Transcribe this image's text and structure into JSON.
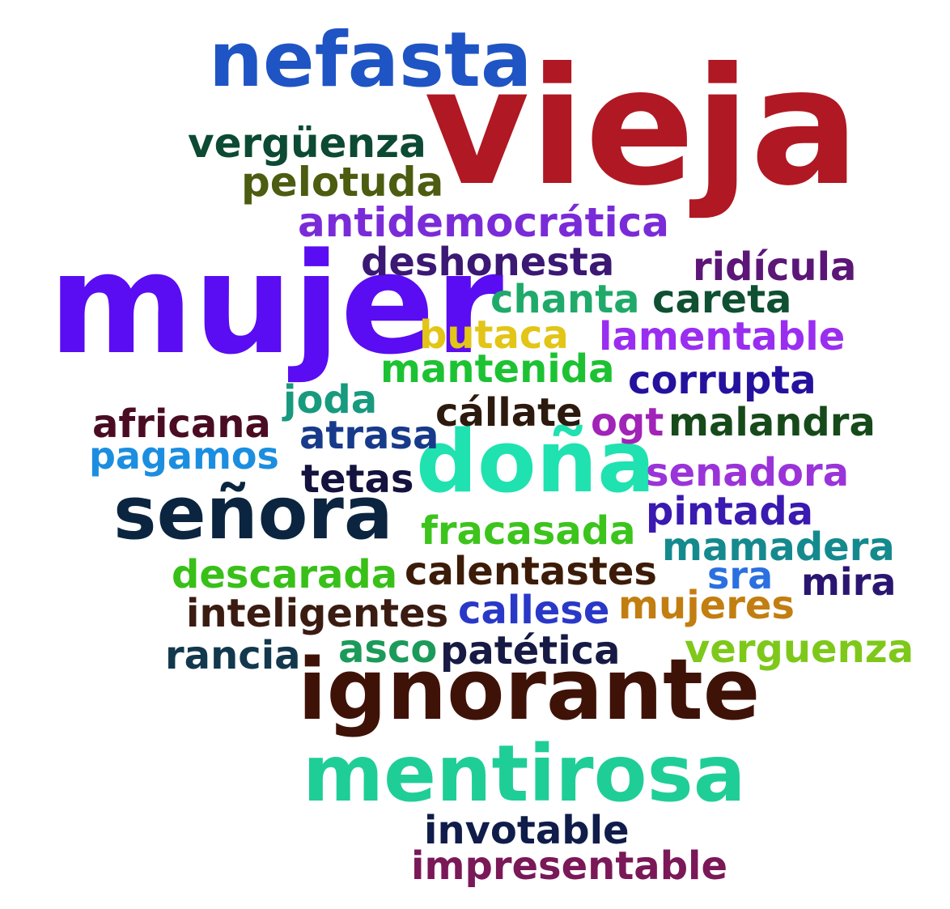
{
  "words": [
    {
      "text": "vieja",
      "color": "#b01823"
    },
    {
      "text": "mujer",
      "color": "#5a0cf2"
    },
    {
      "text": "ignorante",
      "color": "#3f1208"
    },
    {
      "text": "mentirosa",
      "color": "#1fce96"
    },
    {
      "text": "nefasta",
      "color": "#1f54c4"
    },
    {
      "text": "señora",
      "color": "#0b2540"
    },
    {
      "text": "doña",
      "color": "#1fe2b0"
    },
    {
      "text": "vergüenza",
      "color": "#0c4a33"
    },
    {
      "text": "pelotuda",
      "color": "#4c5c10"
    },
    {
      "text": "antidemocrática",
      "color": "#7a2bd8"
    },
    {
      "text": "deshonesta",
      "color": "#3b1874"
    },
    {
      "text": "ridícula",
      "color": "#5c1677"
    },
    {
      "text": "chanta",
      "color": "#1faa6a"
    },
    {
      "text": "careta",
      "color": "#0f5032"
    },
    {
      "text": "butaca",
      "color": "#e2c516"
    },
    {
      "text": "lamentable",
      "color": "#9a2ef0"
    },
    {
      "text": "mantenida",
      "color": "#1cc232"
    },
    {
      "text": "corrupta",
      "color": "#24129e"
    },
    {
      "text": "joda",
      "color": "#189a7e"
    },
    {
      "text": "africana",
      "color": "#4a0c22"
    },
    {
      "text": "cállate",
      "color": "#2c1a0e"
    },
    {
      "text": "ogt",
      "color": "#a123b8"
    },
    {
      "text": "malandra",
      "color": "#174a1a"
    },
    {
      "text": "atrasa",
      "color": "#183a8a"
    },
    {
      "text": "pagamos",
      "color": "#1c8ee0"
    },
    {
      "text": "senadora",
      "color": "#9a34d8"
    },
    {
      "text": "tetas",
      "color": "#14123e"
    },
    {
      "text": "pintada",
      "color": "#3a1ab0"
    },
    {
      "text": "fracasada",
      "color": "#3cc41c"
    },
    {
      "text": "mamadera",
      "color": "#158a8e"
    },
    {
      "text": "descarada",
      "color": "#38c018"
    },
    {
      "text": "calentastes",
      "color": "#3c1c08"
    },
    {
      "text": "sra",
      "color": "#2a70e0"
    },
    {
      "text": "mira",
      "color": "#2a1670"
    },
    {
      "text": "inteligentes",
      "color": "#3a1c12"
    },
    {
      "text": "callese",
      "color": "#2a38c8"
    },
    {
      "text": "mujeres",
      "color": "#c27e10"
    },
    {
      "text": "rancia",
      "color": "#12384e"
    },
    {
      "text": "asco",
      "color": "#1c9a5a"
    },
    {
      "text": "patética",
      "color": "#161a44"
    },
    {
      "text": "verguenza",
      "color": "#7ec81a"
    },
    {
      "text": "invotable",
      "color": "#101c4a"
    },
    {
      "text": "impresentable",
      "color": "#7a1858"
    }
  ]
}
